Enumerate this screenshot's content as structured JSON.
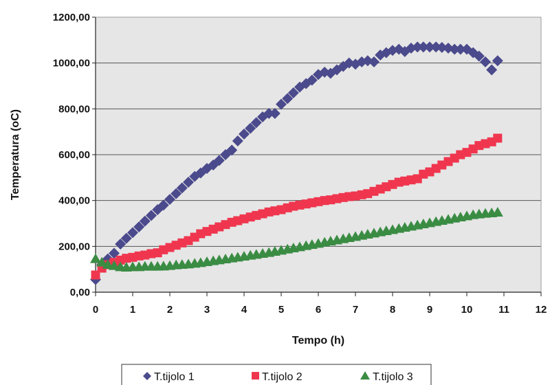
{
  "chart_data": {
    "type": "scatter",
    "xlabel": "Tempo (h)",
    "ylabel": "Temperatura (oC)",
    "xlim": [
      0,
      12
    ],
    "ylim": [
      0,
      1200
    ],
    "xticks": [
      0,
      1,
      2,
      3,
      4,
      5,
      6,
      7,
      8,
      9,
      10,
      11,
      12
    ],
    "xtick_labels": [
      "0",
      "1",
      "2",
      "3",
      "4",
      "5",
      "6",
      "7",
      "8",
      "9",
      "10",
      "11",
      "12"
    ],
    "yticks": [
      0,
      200,
      400,
      600,
      800,
      1000,
      1200
    ],
    "ytick_labels": [
      "0,00",
      "200,00",
      "400,00",
      "600,00",
      "800,00",
      "1000,00",
      "1200,00"
    ],
    "grid": "horizontal",
    "plot_background": "#e6e6e6",
    "legend_position": "bottom",
    "series": [
      {
        "name": "T.tijolo 1",
        "marker": "diamond",
        "color": "#4b4a8c",
        "points": [
          [
            0,
            55
          ],
          [
            0.17,
            120
          ],
          [
            0.33,
            145
          ],
          [
            0.5,
            170
          ],
          [
            0.67,
            210
          ],
          [
            0.83,
            235
          ],
          [
            1,
            260
          ],
          [
            1.17,
            285
          ],
          [
            1.33,
            310
          ],
          [
            1.5,
            335
          ],
          [
            1.67,
            360
          ],
          [
            1.83,
            380
          ],
          [
            2,
            405
          ],
          [
            2.17,
            430
          ],
          [
            2.33,
            455
          ],
          [
            2.5,
            480
          ],
          [
            2.67,
            505
          ],
          [
            2.83,
            520
          ],
          [
            3,
            540
          ],
          [
            3.17,
            555
          ],
          [
            3.33,
            575
          ],
          [
            3.5,
            600
          ],
          [
            3.67,
            620
          ],
          [
            3.83,
            660
          ],
          [
            4,
            690
          ],
          [
            4.17,
            715
          ],
          [
            4.33,
            740
          ],
          [
            4.5,
            765
          ],
          [
            4.67,
            780
          ],
          [
            4.83,
            780
          ],
          [
            5,
            820
          ],
          [
            5.17,
            845
          ],
          [
            5.33,
            870
          ],
          [
            5.5,
            895
          ],
          [
            5.67,
            910
          ],
          [
            5.83,
            925
          ],
          [
            6,
            950
          ],
          [
            6.17,
            960
          ],
          [
            6.33,
            955
          ],
          [
            6.5,
            970
          ],
          [
            6.67,
            985
          ],
          [
            6.83,
            1000
          ],
          [
            7,
            995
          ],
          [
            7.17,
            1005
          ],
          [
            7.33,
            1010
          ],
          [
            7.5,
            1005
          ],
          [
            7.67,
            1035
          ],
          [
            7.83,
            1045
          ],
          [
            8,
            1055
          ],
          [
            8.17,
            1060
          ],
          [
            8.33,
            1050
          ],
          [
            8.5,
            1065
          ],
          [
            8.67,
            1070
          ],
          [
            8.83,
            1070
          ],
          [
            9,
            1070
          ],
          [
            9.17,
            1070
          ],
          [
            9.33,
            1068
          ],
          [
            9.5,
            1065
          ],
          [
            9.67,
            1060
          ],
          [
            9.83,
            1060
          ],
          [
            10,
            1060
          ],
          [
            10.17,
            1045
          ],
          [
            10.33,
            1030
          ],
          [
            10.5,
            1005
          ],
          [
            10.67,
            970
          ],
          [
            10.83,
            1010
          ]
        ]
      },
      {
        "name": "T.tijolo 2",
        "marker": "square",
        "color": "#f0364f",
        "points": [
          [
            0,
            75
          ],
          [
            0.17,
            105
          ],
          [
            0.33,
            120
          ],
          [
            0.5,
            130
          ],
          [
            0.67,
            140
          ],
          [
            0.83,
            148
          ],
          [
            1,
            152
          ],
          [
            1.17,
            158
          ],
          [
            1.33,
            162
          ],
          [
            1.5,
            168
          ],
          [
            1.67,
            172
          ],
          [
            1.83,
            185
          ],
          [
            2,
            195
          ],
          [
            2.17,
            205
          ],
          [
            2.33,
            215
          ],
          [
            2.5,
            225
          ],
          [
            2.67,
            240
          ],
          [
            2.83,
            255
          ],
          [
            3,
            265
          ],
          [
            3.17,
            275
          ],
          [
            3.33,
            285
          ],
          [
            3.5,
            295
          ],
          [
            3.67,
            305
          ],
          [
            3.83,
            312
          ],
          [
            4,
            320
          ],
          [
            4.17,
            328
          ],
          [
            4.33,
            335
          ],
          [
            4.5,
            342
          ],
          [
            4.67,
            350
          ],
          [
            4.83,
            355
          ],
          [
            5,
            360
          ],
          [
            5.17,
            368
          ],
          [
            5.33,
            375
          ],
          [
            5.5,
            380
          ],
          [
            5.67,
            385
          ],
          [
            5.83,
            390
          ],
          [
            6,
            395
          ],
          [
            6.17,
            400
          ],
          [
            6.33,
            403
          ],
          [
            6.5,
            408
          ],
          [
            6.67,
            413
          ],
          [
            6.83,
            417
          ],
          [
            7,
            420
          ],
          [
            7.17,
            425
          ],
          [
            7.33,
            430
          ],
          [
            7.5,
            440
          ],
          [
            7.67,
            450
          ],
          [
            7.83,
            460
          ],
          [
            8,
            470
          ],
          [
            8.17,
            480
          ],
          [
            8.33,
            485
          ],
          [
            8.5,
            490
          ],
          [
            8.67,
            495
          ],
          [
            8.83,
            515
          ],
          [
            9,
            525
          ],
          [
            9.17,
            540
          ],
          [
            9.33,
            555
          ],
          [
            9.5,
            570
          ],
          [
            9.67,
            585
          ],
          [
            9.83,
            600
          ],
          [
            10,
            610
          ],
          [
            10.17,
            625
          ],
          [
            10.33,
            640
          ],
          [
            10.5,
            648
          ],
          [
            10.67,
            656
          ],
          [
            10.83,
            672
          ]
        ]
      },
      {
        "name": "T.tijolo 3",
        "marker": "triangle",
        "color": "#3a8c43",
        "points": [
          [
            0,
            145
          ],
          [
            0.17,
            130
          ],
          [
            0.33,
            120
          ],
          [
            0.5,
            115
          ],
          [
            0.67,
            110
          ],
          [
            0.83,
            108
          ],
          [
            1,
            110
          ],
          [
            1.17,
            110
          ],
          [
            1.33,
            112
          ],
          [
            1.5,
            112
          ],
          [
            1.67,
            112
          ],
          [
            1.83,
            113
          ],
          [
            2,
            115
          ],
          [
            2.17,
            118
          ],
          [
            2.33,
            120
          ],
          [
            2.5,
            122
          ],
          [
            2.67,
            125
          ],
          [
            2.83,
            128
          ],
          [
            3,
            132
          ],
          [
            3.17,
            136
          ],
          [
            3.33,
            140
          ],
          [
            3.5,
            144
          ],
          [
            3.67,
            148
          ],
          [
            3.83,
            152
          ],
          [
            4,
            156
          ],
          [
            4.17,
            160
          ],
          [
            4.33,
            164
          ],
          [
            4.5,
            168
          ],
          [
            4.67,
            172
          ],
          [
            4.83,
            177
          ],
          [
            5,
            182
          ],
          [
            5.17,
            187
          ],
          [
            5.33,
            192
          ],
          [
            5.5,
            197
          ],
          [
            5.67,
            202
          ],
          [
            5.83,
            207
          ],
          [
            6,
            212
          ],
          [
            6.17,
            217
          ],
          [
            6.33,
            222
          ],
          [
            6.5,
            227
          ],
          [
            6.67,
            232
          ],
          [
            6.83,
            237
          ],
          [
            7,
            242
          ],
          [
            7.17,
            247
          ],
          [
            7.33,
            252
          ],
          [
            7.5,
            257
          ],
          [
            7.67,
            262
          ],
          [
            7.83,
            267
          ],
          [
            8,
            272
          ],
          [
            8.17,
            277
          ],
          [
            8.33,
            282
          ],
          [
            8.5,
            287
          ],
          [
            8.67,
            292
          ],
          [
            8.83,
            297
          ],
          [
            9,
            302
          ],
          [
            9.17,
            307
          ],
          [
            9.33,
            312
          ],
          [
            9.5,
            317
          ],
          [
            9.67,
            322
          ],
          [
            9.83,
            327
          ],
          [
            10,
            332
          ],
          [
            10.17,
            337
          ],
          [
            10.33,
            340
          ],
          [
            10.5,
            343
          ],
          [
            10.67,
            345
          ],
          [
            10.83,
            348
          ]
        ]
      }
    ]
  }
}
